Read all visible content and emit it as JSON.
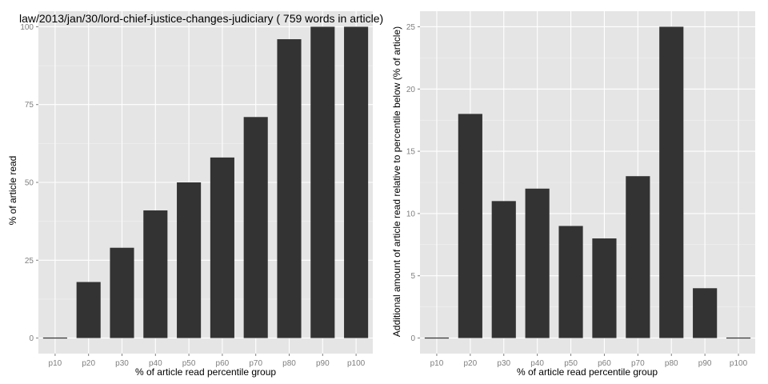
{
  "chart_data": [
    {
      "type": "bar",
      "title": "law/2013/jan/30/lord-chief-justice-changes-judiciary ( 759 words in article)",
      "xlabel": "% of article read percentile group",
      "ylabel": "% of article read",
      "categories": [
        "p10",
        "p20",
        "p30",
        "p40",
        "p50",
        "p60",
        "p70",
        "p80",
        "p90",
        "p100"
      ],
      "values": [
        0,
        18,
        29,
        41,
        50,
        58,
        71,
        96,
        100,
        100
      ],
      "ylim": [
        -5,
        105
      ],
      "yticks": [
        "0",
        "25",
        "50",
        "75",
        "100"
      ],
      "grid": true,
      "bar_color": "#333333",
      "panel_color": "#e5e5e5"
    },
    {
      "type": "bar",
      "title": "",
      "xlabel": "% of article read percentile group",
      "ylabel": "Additional amount of article read relative to percentile below (% of article)",
      "categories": [
        "p10",
        "p20",
        "p30",
        "p40",
        "p50",
        "p60",
        "p70",
        "p80",
        "p90",
        "p100"
      ],
      "values": [
        0,
        18,
        11,
        12,
        9,
        8,
        13,
        25,
        4,
        0
      ],
      "ylim": [
        -1.25,
        26.25
      ],
      "yticks": [
        "0",
        "5",
        "10",
        "15",
        "20",
        "25"
      ],
      "grid": true,
      "bar_color": "#333333",
      "panel_color": "#e5e5e5"
    }
  ]
}
